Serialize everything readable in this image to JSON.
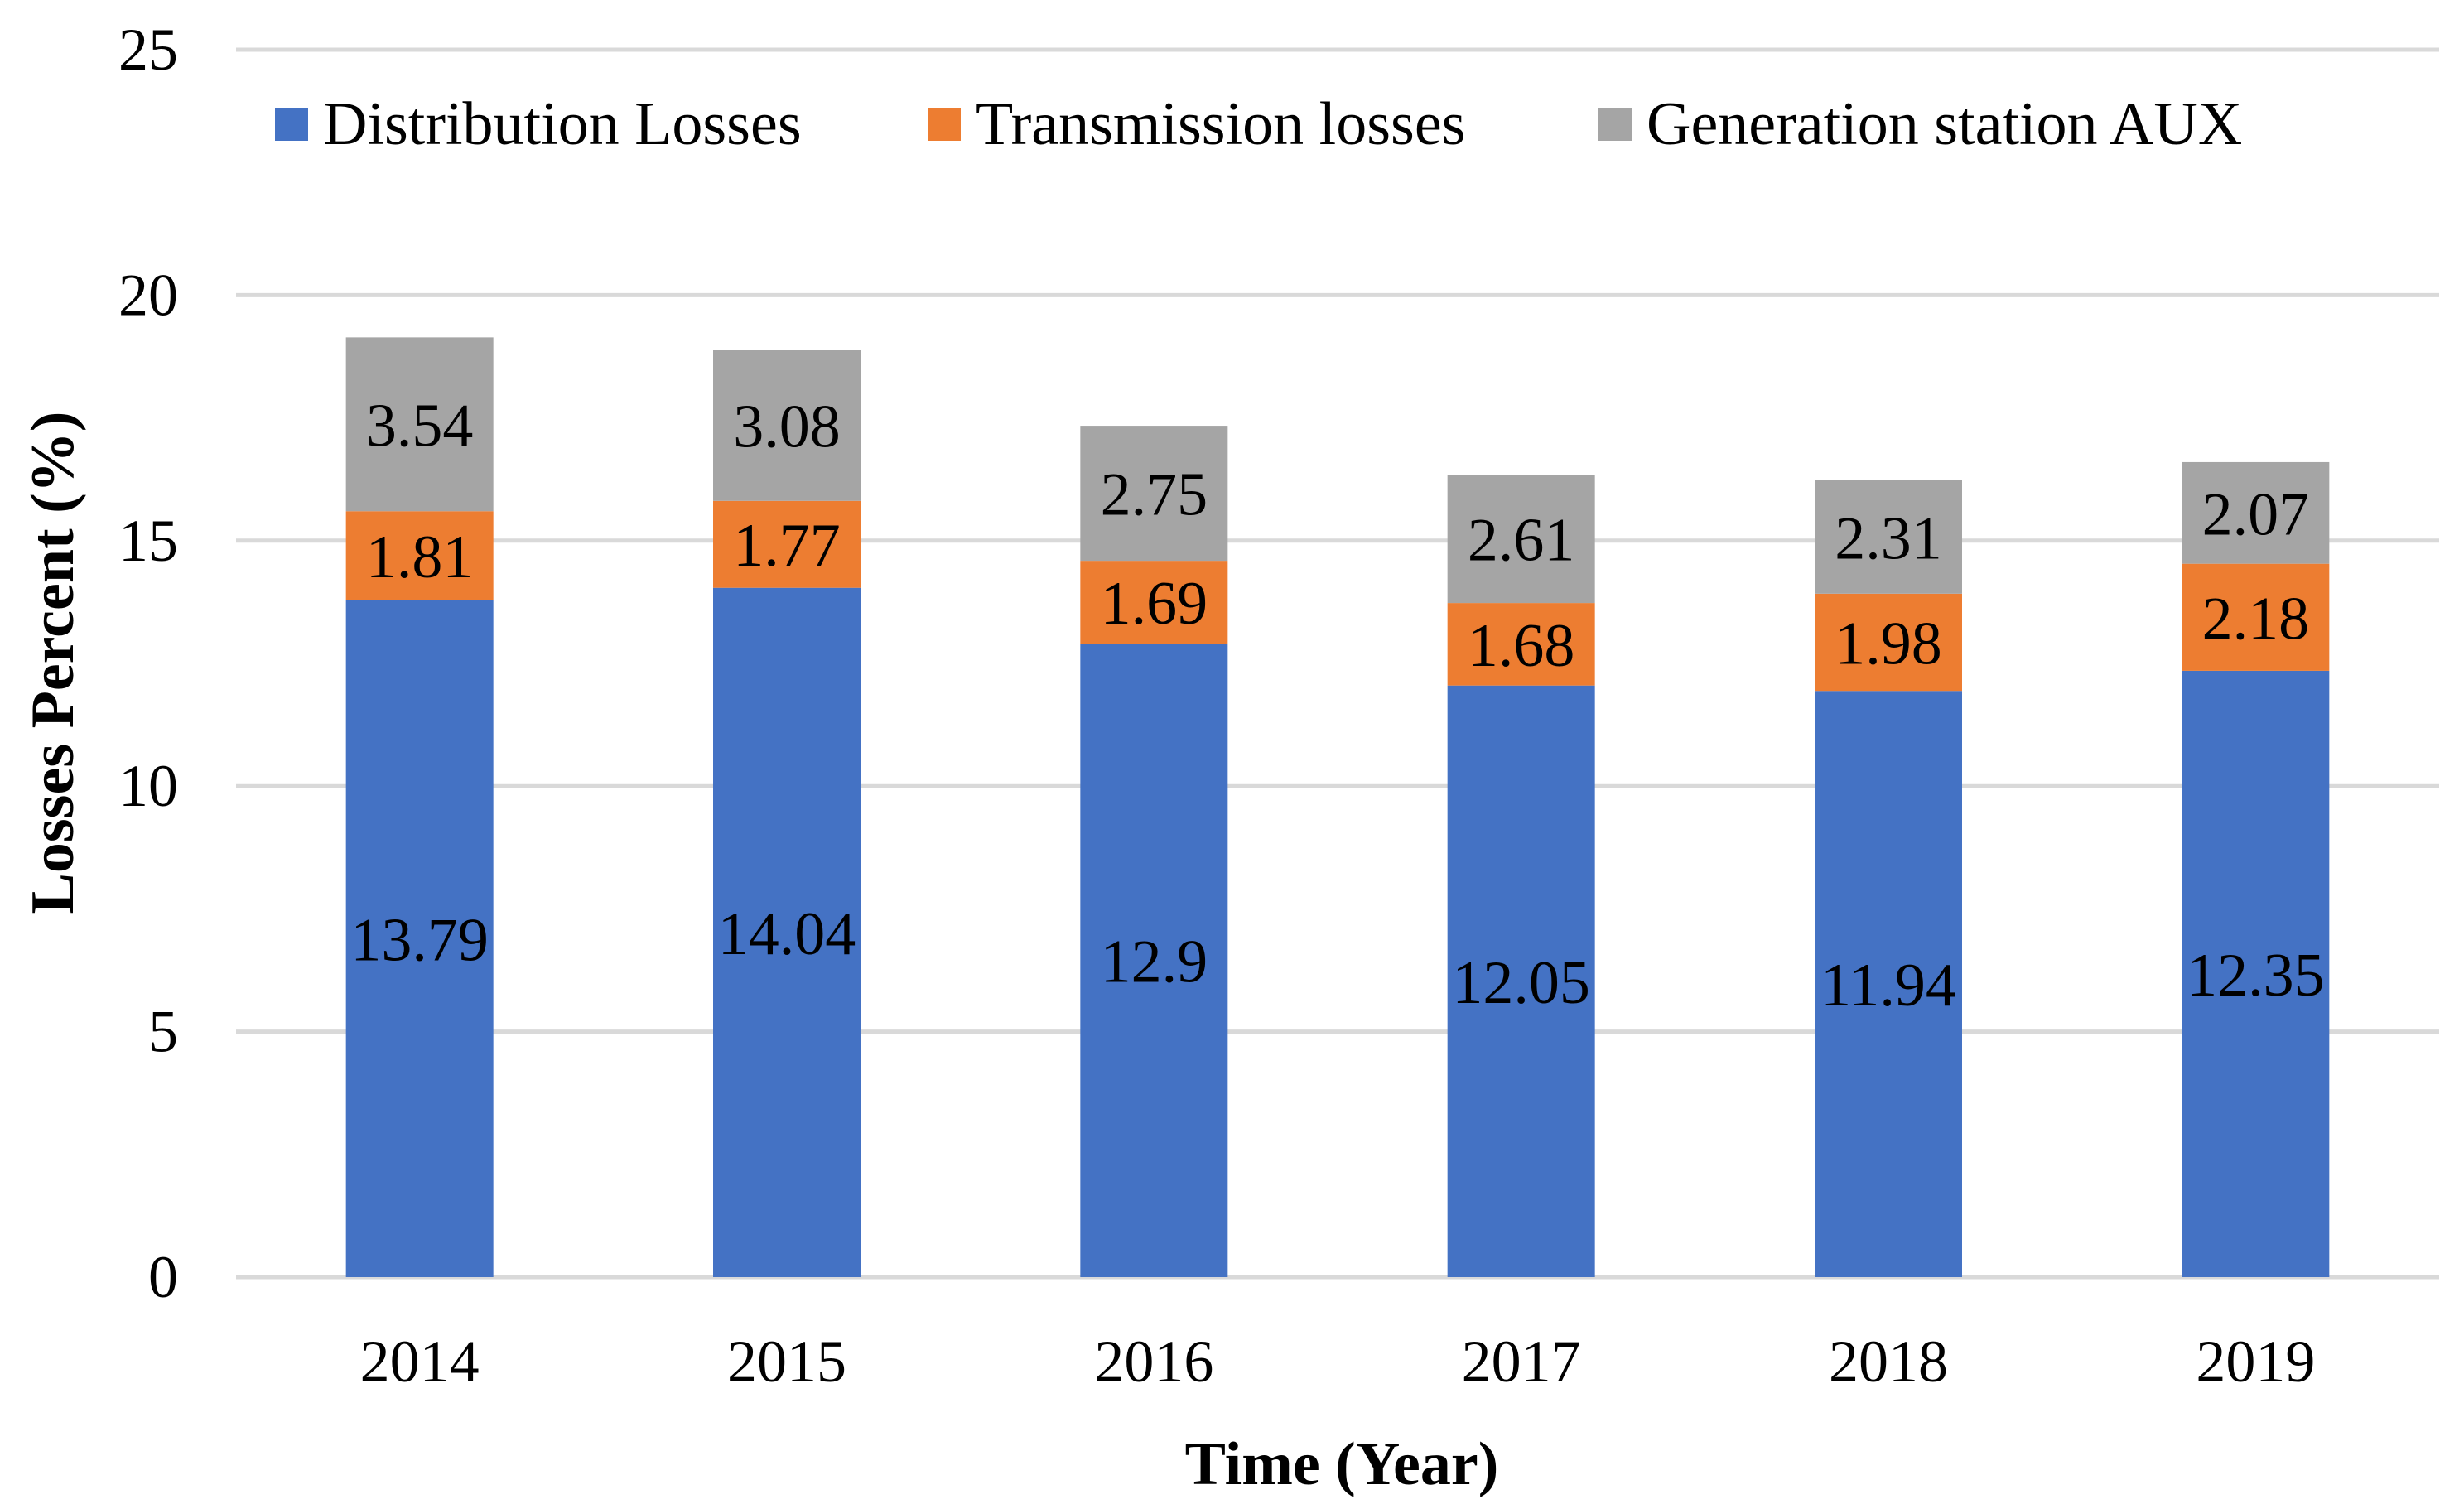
{
  "chart_data": {
    "type": "bar",
    "stacked": true,
    "title": "",
    "xlabel": "Time (Year)",
    "ylabel": "Losses Percent (%)",
    "ylim": [
      0,
      25
    ],
    "yticks": [
      0,
      5,
      10,
      15,
      20,
      25
    ],
    "grid": true,
    "legend_position": "top",
    "categories": [
      "2014",
      "2015",
      "2016",
      "2017",
      "2018",
      "2019"
    ],
    "series": [
      {
        "name": "Distribution Losses",
        "color": "#4472C4",
        "values": [
          13.79,
          14.04,
          12.9,
          12.05,
          11.94,
          12.35
        ]
      },
      {
        "name": "Transmission losses",
        "color": "#ED7D31",
        "values": [
          1.81,
          1.77,
          1.69,
          1.68,
          1.98,
          2.18
        ]
      },
      {
        "name": "Generation station AUX",
        "color": "#A5A5A5",
        "values": [
          3.54,
          3.08,
          2.75,
          2.61,
          2.31,
          2.07
        ]
      }
    ],
    "data_labels": [
      [
        "13.79",
        "14.04",
        "12.9",
        "12.05",
        "11.94",
        "12.35"
      ],
      [
        "1.81",
        "1.77",
        "1.69",
        "1.68",
        "1.98",
        "2.18"
      ],
      [
        "3.54",
        "3.08",
        "2.75",
        "2.61",
        "2.31",
        "2.07"
      ]
    ]
  }
}
